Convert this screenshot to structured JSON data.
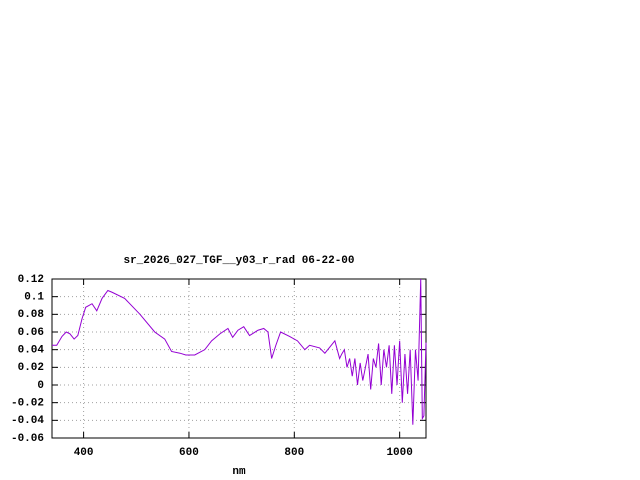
{
  "chart_data": {
    "type": "line",
    "title": "sr_2026_027_TGF__y03_r_rad 06-22-00",
    "x_label": "nm",
    "x": [
      340,
      349,
      359,
      367,
      374,
      382,
      389,
      397,
      404,
      416,
      425,
      435,
      446,
      454,
      478,
      507,
      535,
      554,
      567,
      583,
      594,
      611,
      630,
      643,
      659,
      674,
      683,
      693,
      704,
      715,
      731,
      742,
      750,
      757,
      765,
      774,
      791,
      806,
      820,
      829,
      848,
      858,
      877,
      886,
      890,
      895,
      900,
      905,
      910,
      915,
      920,
      925,
      930,
      935,
      940,
      945,
      950,
      955,
      960,
      965,
      970,
      975,
      980,
      985,
      990,
      995,
      1000,
      1005,
      1010,
      1015,
      1020,
      1025,
      1030,
      1035,
      1040,
      1043,
      1046,
      1050
    ],
    "series": [
      {
        "name": "sr_2026_027_TGF__y03_r_rad",
        "color": "#9400d3",
        "values": [
          0.045,
          0.045,
          0.055,
          0.06,
          0.058,
          0.052,
          0.056,
          0.075,
          0.088,
          0.092,
          0.084,
          0.098,
          0.107,
          0.105,
          0.098,
          0.08,
          0.06,
          0.052,
          0.038,
          0.036,
          0.034,
          0.034,
          0.04,
          0.05,
          0.058,
          0.064,
          0.054,
          0.062,
          0.066,
          0.056,
          0.062,
          0.064,
          0.06,
          0.03,
          0.045,
          0.06,
          0.055,
          0.05,
          0.04,
          0.045,
          0.042,
          0.036,
          0.05,
          0.03,
          0.035,
          0.04,
          0.02,
          0.03,
          0.01,
          0.03,
          0.0,
          0.025,
          0.005,
          0.02,
          0.035,
          -0.005,
          0.03,
          0.02,
          0.047,
          0.0,
          0.04,
          0.02,
          0.045,
          -0.01,
          0.045,
          0.0,
          0.05,
          -0.02,
          0.035,
          -0.01,
          0.04,
          -0.045,
          0.04,
          0.005,
          0.12,
          -0.038,
          -0.035,
          0.048
        ]
      }
    ],
    "xlim": [
      340,
      1050
    ],
    "xticks": [
      400,
      600,
      800,
      1000
    ],
    "ylim": [
      -0.06,
      0.12
    ],
    "yticks": [
      -0.06,
      -0.04,
      -0.02,
      0,
      0.02,
      0.04,
      0.06,
      0.08,
      0.1,
      0.12
    ],
    "grid": true
  }
}
